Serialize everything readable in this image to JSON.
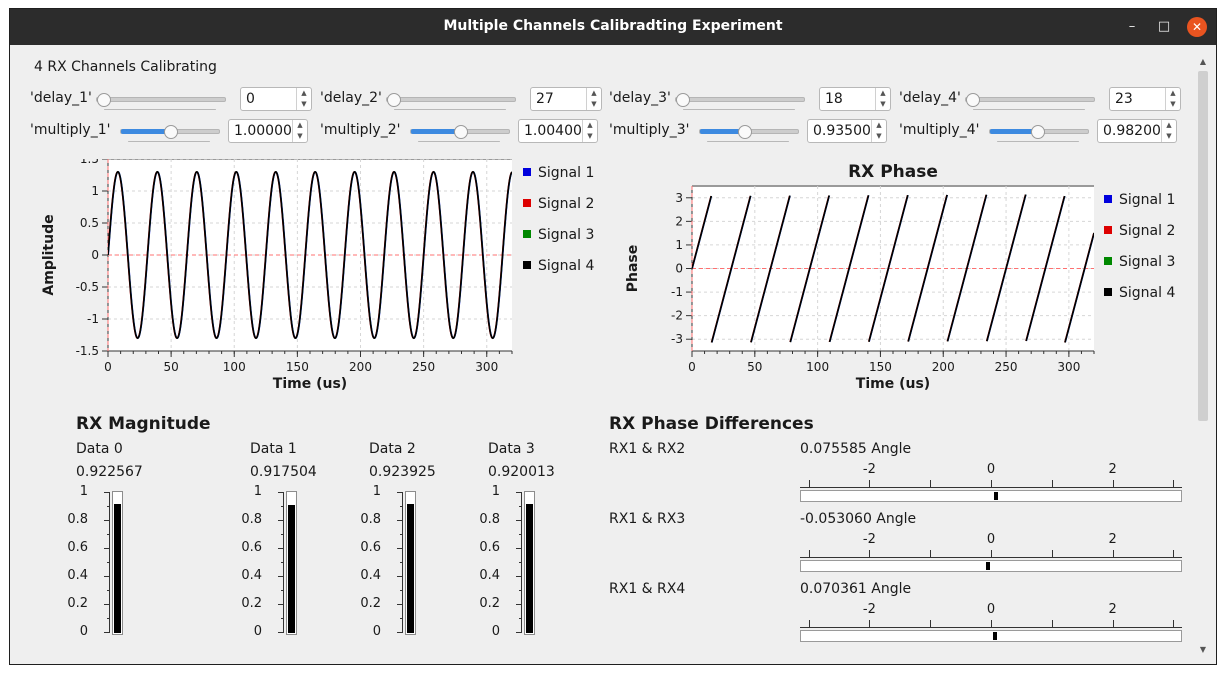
{
  "window": {
    "title": "Multiple Channels Calibradting Experiment",
    "minimize": "–",
    "maximize": "□",
    "close": "✕"
  },
  "header": "4 RX Channels Calibrating",
  "controls": {
    "delays": [
      {
        "label": "'delay_1'",
        "value": "0",
        "level": 0.0
      },
      {
        "label": "'delay_2'",
        "value": "27",
        "level": 0.0
      },
      {
        "label": "'delay_3'",
        "value": "18",
        "level": 0.0
      },
      {
        "label": "'delay_4'",
        "value": "23",
        "level": 0.0
      }
    ],
    "multiplies": [
      {
        "label": "'multiply_1'",
        "value": "1.00000",
        "level": 0.5
      },
      {
        "label": "'multiply_2'",
        "value": "1.00400",
        "level": 0.5
      },
      {
        "label": "'multiply_3'",
        "value": "0.93500",
        "level": 0.44
      },
      {
        "label": "'multiply_4'",
        "value": "0.98200",
        "level": 0.48
      }
    ]
  },
  "chart_data": [
    {
      "type": "line",
      "title": "",
      "xlabel": "Time (us)",
      "ylabel": "Amplitude",
      "xlim": [
        0,
        320
      ],
      "ylim": [
        -1.5,
        1.5
      ],
      "xticks": [
        0,
        50,
        100,
        150,
        200,
        250,
        300
      ],
      "yticks": [
        "1.5",
        "1",
        "0.5",
        "0",
        "-0.5",
        "-1",
        "-1.5"
      ],
      "amplitude": 1.3,
      "period_us": 31.25,
      "series": [
        {
          "name": "Signal 1",
          "color": "#0000dd"
        },
        {
          "name": "Signal 2",
          "color": "#dd0000"
        },
        {
          "name": "Signal 3",
          "color": "#008800"
        },
        {
          "name": "Signal 4",
          "color": "#000000"
        }
      ],
      "grid": true,
      "legend": "right"
    },
    {
      "type": "line",
      "title": "RX Phase",
      "xlabel": "Time (us)",
      "ylabel": "Phase",
      "xlim": [
        0,
        320
      ],
      "ylim": [
        -3.5,
        3.5
      ],
      "xticks": [
        0,
        50,
        100,
        150,
        200,
        250,
        300
      ],
      "yticks": [
        "3",
        "2",
        "1",
        "0",
        "-1",
        "-2",
        "-3"
      ],
      "phase_max": 3.14,
      "period_us": 31.25,
      "series": [
        {
          "name": "Signal 1",
          "color": "#0000dd"
        },
        {
          "name": "Signal 2",
          "color": "#dd0000"
        },
        {
          "name": "Signal 3",
          "color": "#008800"
        },
        {
          "name": "Signal 4",
          "color": "#000000"
        }
      ],
      "grid": true,
      "legend": "right"
    }
  ],
  "magnitude": {
    "title": "RX Magnitude",
    "scale": [
      "1",
      "0.8",
      "0.6",
      "0.4",
      "0.2",
      "0"
    ],
    "channels": [
      {
        "label": "Data 0",
        "value": "0.922567",
        "level": 0.922567
      },
      {
        "label": "Data 1",
        "value": "0.917504",
        "level": 0.917504
      },
      {
        "label": "Data 2",
        "value": "0.923925",
        "level": 0.923925
      },
      {
        "label": "Data 3",
        "value": "0.920013",
        "level": 0.920013
      }
    ]
  },
  "phase_diff": {
    "title": "RX Phase Differences",
    "range": [
      -3.14159,
      3.14159
    ],
    "scale": [
      "-2",
      "0",
      "2"
    ],
    "scale_values": [
      -2,
      0,
      2
    ],
    "items": [
      {
        "label": "RX1 & RX2",
        "value": "0.075585 Angle",
        "level": 0.075585
      },
      {
        "label": "RX1 & RX3",
        "value": "-0.053060 Angle",
        "level": -0.05306
      },
      {
        "label": "RX1 & RX4",
        "value": "0.070361 Angle",
        "level": 0.070361
      }
    ]
  },
  "scroll": {
    "up": "▲",
    "down": "▼"
  }
}
